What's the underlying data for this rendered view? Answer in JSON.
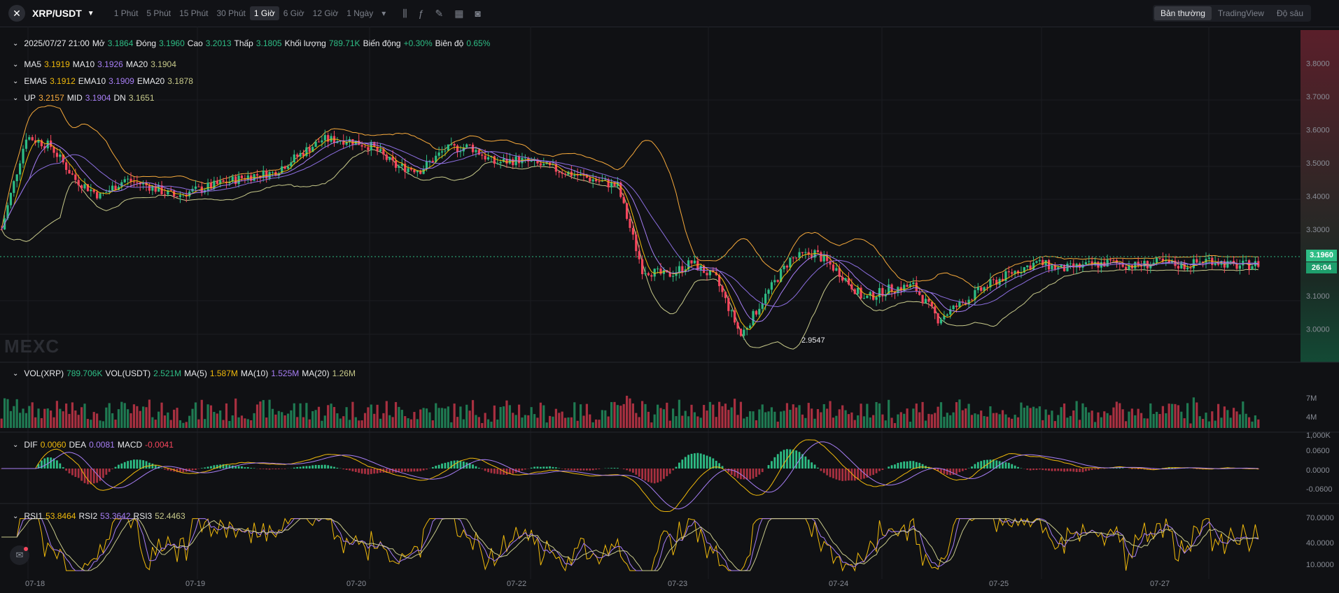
{
  "header": {
    "pair": "XRP/USDT",
    "timeframes": [
      "1 Phút",
      "5 Phút",
      "15 Phút",
      "30 Phút",
      "1 Giờ",
      "6 Giờ",
      "12 Giờ",
      "1 Ngày"
    ],
    "active_timeframe": "1 Giờ",
    "views": [
      "Bản thường",
      "TradingView",
      "Độ sâu"
    ],
    "active_view": "Bản thường"
  },
  "ohlc": {
    "datetime": "2025/07/27 21:00",
    "open_label": "Mở",
    "open": "3.1864",
    "close_label": "Đóng",
    "close": "3.1960",
    "high_label": "Cao",
    "high": "3.2013",
    "low_label": "Thấp",
    "low": "3.1805",
    "volume_label": "Khối lượng",
    "volume": "789.71K",
    "change_label": "Biến động",
    "change": "+0.30%",
    "amplitude_label": "Biên độ",
    "amplitude": "0.65%"
  },
  "ma": {
    "ma5_label": "MA5",
    "ma5": "3.1919",
    "ma10_label": "MA10",
    "ma10": "3.1926",
    "ma20_label": "MA20",
    "ma20": "3.1904"
  },
  "ema": {
    "ema5_label": "EMA5",
    "ema5": "3.1912",
    "ema10_label": "EMA10",
    "ema10": "3.1909",
    "ema20_label": "EMA20",
    "ema20": "3.1878"
  },
  "boll": {
    "up_label": "UP",
    "up": "3.2157",
    "mid_label": "MID",
    "mid": "3.1904",
    "dn_label": "DN",
    "dn": "3.1651"
  },
  "vol": {
    "vol_xrp_label": "VOL(XRP)",
    "vol_xrp": "789.706K",
    "vol_usdt_label": "VOL(USDT)",
    "vol_usdt": "2.521M",
    "ma5_label": "MA(5)",
    "ma5": "1.587M",
    "ma10_label": "MA(10)",
    "ma10": "1.525M",
    "ma20_label": "MA(20)",
    "ma20": "1.26M"
  },
  "macd": {
    "dif_label": "DIF",
    "dif": "0.0060",
    "dea_label": "DEA",
    "dea": "0.0081",
    "macd_label": "MACD",
    "macd": "-0.0041"
  },
  "rsi": {
    "rsi1_label": "RSI1",
    "rsi1": "53.8464",
    "rsi2_label": "RSI2",
    "rsi2": "53.3642",
    "rsi3_label": "RSI3",
    "rsi3": "52.4463"
  },
  "current_price": "3.1960",
  "countdown": "26:04",
  "low_marker": "2.9547",
  "watermark": "MEXC",
  "colors": {
    "up": "#2ebd85",
    "down": "#f6465d",
    "ma5": "#f0b90b",
    "ma10": "#a77ef5",
    "ma20": "#c7c98a",
    "boll": "#f6a93b"
  },
  "chart_data": {
    "type": "candlestick",
    "x_labels": [
      "07-18",
      "07-19",
      "07-20",
      "07-22",
      "07-23",
      "07-24",
      "07-25",
      "07-27"
    ],
    "price_axis": [
      "3.8000",
      "3.7000",
      "3.6000",
      "3.5000",
      "3.4000",
      "3.3000",
      "3.1000",
      "3.0000"
    ],
    "volume_axis": [
      "7M",
      "4M",
      "1,000K"
    ],
    "macd_axis": [
      "0.0600",
      "0.0000",
      "-0.0600"
    ],
    "rsi_axis": [
      "70.0000",
      "40.0000",
      "10.0000"
    ],
    "ylim": [
      2.9,
      3.9
    ],
    "price_path": [
      [
        0,
        3.3
      ],
      [
        8,
        3.58
      ],
      [
        16,
        3.55
      ],
      [
        24,
        3.45
      ],
      [
        32,
        3.4
      ],
      [
        40,
        3.45
      ],
      [
        48,
        3.43
      ],
      [
        56,
        3.4
      ],
      [
        64,
        3.42
      ],
      [
        72,
        3.44
      ],
      [
        80,
        3.46
      ],
      [
        88,
        3.47
      ],
      [
        96,
        3.52
      ],
      [
        104,
        3.57
      ],
      [
        112,
        3.57
      ],
      [
        120,
        3.55
      ],
      [
        128,
        3.49
      ],
      [
        136,
        3.48
      ],
      [
        144,
        3.54
      ],
      [
        152,
        3.55
      ],
      [
        160,
        3.5
      ],
      [
        168,
        3.51
      ],
      [
        176,
        3.49
      ],
      [
        184,
        3.47
      ],
      [
        192,
        3.45
      ],
      [
        200,
        3.43
      ],
      [
        208,
        3.18
      ],
      [
        216,
        3.16
      ],
      [
        224,
        3.2
      ],
      [
        232,
        3.15
      ],
      [
        240,
        2.98
      ],
      [
        248,
        3.1
      ],
      [
        256,
        3.21
      ],
      [
        264,
        3.23
      ],
      [
        272,
        3.17
      ],
      [
        280,
        3.09
      ],
      [
        288,
        3.12
      ],
      [
        296,
        3.13
      ],
      [
        304,
        3.03
      ],
      [
        312,
        3.08
      ],
      [
        320,
        3.13
      ],
      [
        328,
        3.17
      ],
      [
        336,
        3.2
      ],
      [
        344,
        3.18
      ],
      [
        352,
        3.19
      ],
      [
        360,
        3.2
      ],
      [
        368,
        3.19
      ],
      [
        376,
        3.2
      ],
      [
        384,
        3.19
      ],
      [
        392,
        3.21
      ],
      [
        400,
        3.19
      ],
      [
        408,
        3.196
      ]
    ]
  }
}
